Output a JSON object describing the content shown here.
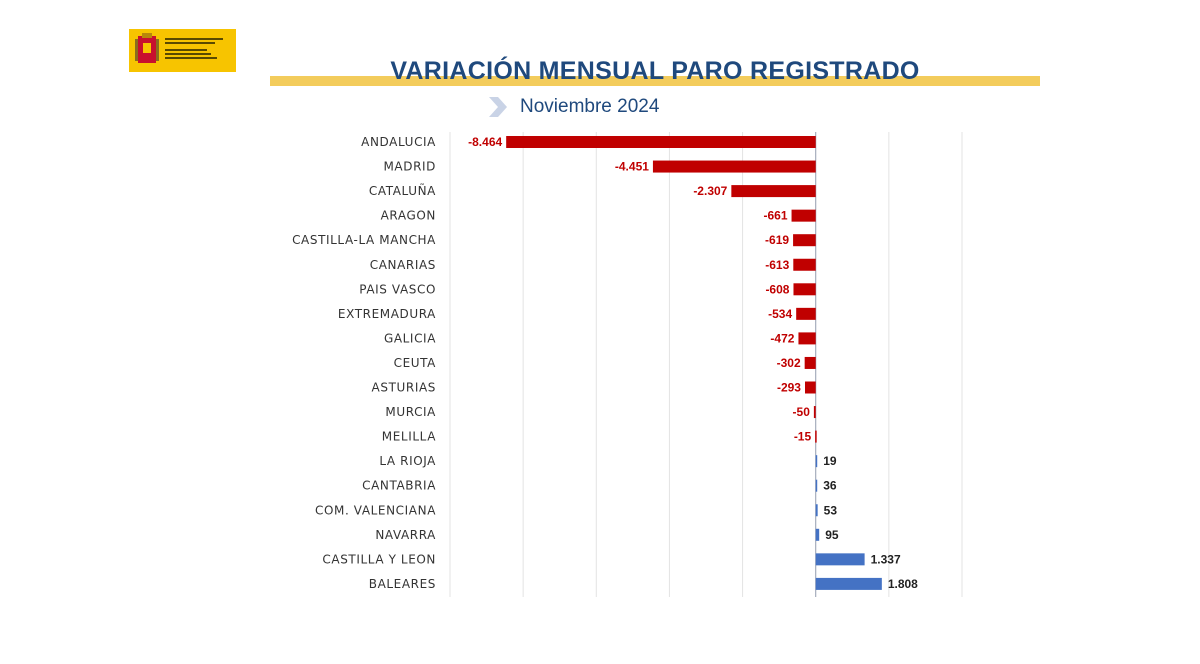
{
  "header": {
    "title": "VARIACIÓN MENSUAL PARO REGISTRADO",
    "subtitle": "Noviembre 2024"
  },
  "logo": {
    "name": "ministerio-logo",
    "text": "VICEPRESIDENCIA SEGUNDA DEL GOBIERNO · MINISTERIO DE TRABAJO Y ECONOMÍA SOCIAL"
  },
  "colors": {
    "negative": "#c00000",
    "positive": "#4472c4",
    "title": "#1f497d",
    "title_band": "#f3cc5c",
    "logo_bg": "#f7c400"
  },
  "chart_data": {
    "type": "bar",
    "orientation": "horizontal",
    "title": "VARIACIÓN MENSUAL PARO REGISTRADO",
    "subtitle": "Noviembre 2024",
    "xlabel": "",
    "ylabel": "",
    "xlim": [
      -10000,
      4000
    ],
    "grid": true,
    "legend": "none",
    "categories": [
      "ANDALUCIA",
      "MADRID",
      "CATALUÑA",
      "ARAGON",
      "CASTILLA-LA MANCHA",
      "CANARIAS",
      "PAIS VASCO",
      "EXTREMADURA",
      "GALICIA",
      "CEUTA",
      "ASTURIAS",
      "MURCIA",
      "MELILLA",
      "LA RIOJA",
      "CANTABRIA",
      "COM. VALENCIANA",
      "NAVARRA",
      "CASTILLA Y LEON",
      "BALEARES"
    ],
    "values": [
      -8464,
      -4451,
      -2307,
      -661,
      -619,
      -613,
      -608,
      -534,
      -472,
      -302,
      -293,
      -50,
      -15,
      19,
      36,
      53,
      95,
      1337,
      1808
    ],
    "value_labels": [
      "-8.464",
      "-4.451",
      "-2.307",
      "-661",
      "-619",
      "-613",
      "-608",
      "-534",
      "-472",
      "-302",
      "-293",
      "-50",
      "-15",
      "19",
      "36",
      "53",
      "95",
      "1.337",
      "1.808"
    ]
  }
}
